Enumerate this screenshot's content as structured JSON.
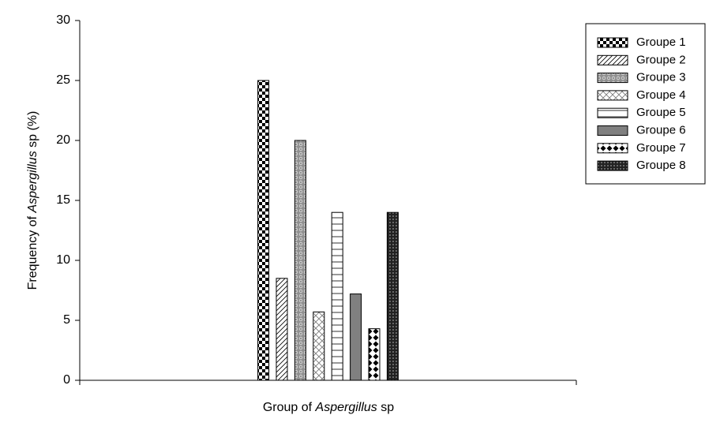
{
  "chart_data": {
    "type": "bar",
    "ylabel": [
      "Frequency of ",
      "Aspergillus",
      " sp (%)"
    ],
    "xlabel": [
      "Group of ",
      "Aspergillus",
      " sp"
    ],
    "categories": [
      null
    ],
    "series": [
      {
        "name": "Groupe 1",
        "pattern": "checker",
        "values": [
          25
        ]
      },
      {
        "name": "Groupe 2",
        "pattern": "diagonal",
        "values": [
          8.5
        ]
      },
      {
        "name": "Groupe 3",
        "pattern": "gray-dots",
        "values": [
          20
        ]
      },
      {
        "name": "Groupe 4",
        "pattern": "crosshatch",
        "values": [
          5.7
        ]
      },
      {
        "name": "Groupe 5",
        "pattern": "hlines",
        "values": [
          14
        ]
      },
      {
        "name": "Groupe 6",
        "pattern": "gray",
        "values": [
          7.2
        ]
      },
      {
        "name": "Groupe 7",
        "pattern": "diamonds",
        "values": [
          4.3
        ]
      },
      {
        "name": "Groupe 8",
        "pattern": "dark-dots",
        "values": [
          14
        ]
      }
    ],
    "ylim": [
      0,
      30
    ],
    "yticks": [
      0,
      5,
      10,
      15,
      20,
      25,
      30
    ],
    "legend": "right"
  }
}
